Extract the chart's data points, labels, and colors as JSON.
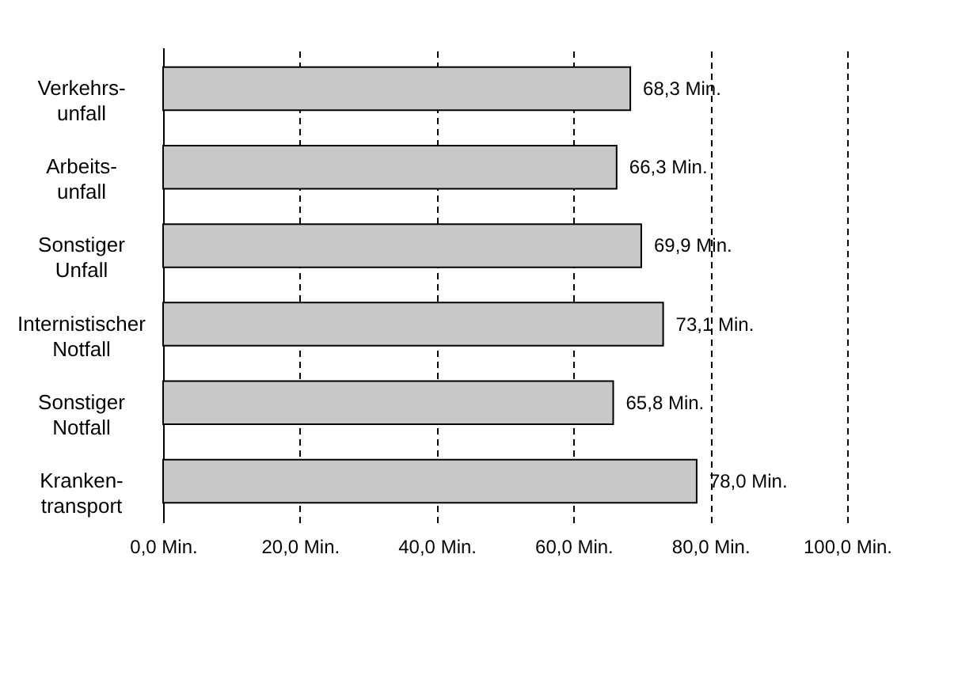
{
  "chart_data": {
    "type": "bar",
    "orientation": "horizontal",
    "categories": [
      "Verkehrs-\nunfall",
      "Arbeits-\nunfall",
      "Sonstiger\nUnfall",
      "Internistischer\nNotfall",
      "Sonstiger\nNotfall",
      "Kranken-\ntransport"
    ],
    "values": [
      68.3,
      66.3,
      69.9,
      73.1,
      65.8,
      78.0
    ],
    "value_labels": [
      "68,3 Min.",
      "66,3 Min.",
      "69,9 Min.",
      "73,1 Min.",
      "65,8 Min.",
      "78,0 Min."
    ],
    "color": "#c8c8c8",
    "xlim": [
      0,
      100
    ],
    "xticks": [
      {
        "value": 0,
        "label": "0,0 Min."
      },
      {
        "value": 20,
        "label": "20,0 Min."
      },
      {
        "value": 40,
        "label": "40,0 Min."
      },
      {
        "value": 60,
        "label": "60,0 Min."
      },
      {
        "value": 80,
        "label": "80,0 Min."
      },
      {
        "value": 100,
        "label": "100,0 Min."
      }
    ],
    "grid": "x"
  }
}
